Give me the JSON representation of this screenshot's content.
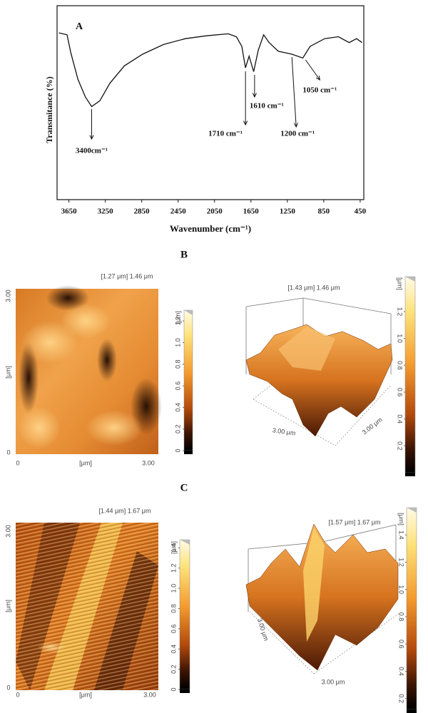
{
  "chart_data": {
    "type": "line",
    "panel_label": "A",
    "xlabel": "Wavenumber (cm⁻¹)",
    "ylabel": "Transmitance (%)",
    "xlim": [
      3780,
      410
    ],
    "xticks": [
      3650,
      3250,
      2850,
      2450,
      2050,
      1650,
      1250,
      850,
      450
    ],
    "ylim": [
      0,
      100
    ],
    "color": "#111111",
    "x": [
      3760,
      3670,
      3630,
      3550,
      3470,
      3400,
      3310,
      3200,
      3040,
      2840,
      2610,
      2370,
      2140,
      1900,
      1810,
      1750,
      1710,
      1670,
      1620,
      1570,
      1510,
      1450,
      1350,
      1200,
      1080,
      1000,
      840,
      690,
      570,
      490,
      430
    ],
    "values": [
      86,
      85,
      76,
      62,
      53,
      48,
      51,
      60,
      69,
      75,
      80,
      83,
      84.5,
      85.5,
      84,
      79,
      68,
      74,
      66,
      77,
      85,
      81,
      76.5,
      75,
      73,
      79,
      83,
      84,
      81,
      83,
      81
    ],
    "annotations": [
      {
        "text": "3400cm⁻¹",
        "x": 3400
      },
      {
        "text": "1710 cm⁻¹",
        "x": 1710
      },
      {
        "text": "1610 cm⁻¹",
        "x": 1610
      },
      {
        "text": "1200 cm⁻¹",
        "x": 1200
      },
      {
        "text": "1050 cm⁻¹",
        "x": 1050
      }
    ]
  },
  "panels": [
    {
      "label": "B",
      "views": [
        {
          "view": "2d",
          "header": "[1.27 μm] 1.46 μm",
          "axis_labels": [
            "3.00",
            "[μm]",
            "0",
            "0",
            "[μm]",
            "3.00"
          ],
          "colorbar": {
            "unit": "[μm]",
            "lim": [
              0,
              1.3
            ],
            "ticks": [
              0,
              0.2,
              0.4,
              0.6,
              0.8,
              {
                "value": 1,
                "label": "1.0"
              },
              1.2
            ]
          }
        },
        {
          "view": "3d",
          "header": "[1.43 μm] 1.46 μm",
          "axis_labels": [
            "3.00 μm",
            "3.00 μm"
          ],
          "colorbar": {
            "unit": "[μm]",
            "lim": [
              0,
              1.46
            ],
            "ticks": [
              0.2,
              0.4,
              0.6,
              0.8,
              {
                "value": 1,
                "label": "1.0"
              },
              1.2
            ]
          }
        }
      ]
    },
    {
      "label": "C",
      "views": [
        {
          "view": "2d",
          "header": "[1.44 μm] 1.67 μm",
          "axis_labels": [
            "3.00",
            "[μm]",
            "0",
            "0",
            "[μm]",
            "3.00"
          ],
          "colorbar": {
            "unit": "[μm]",
            "lim": [
              0,
              1.48
            ],
            "ticks": [
              0,
              0.2,
              0.4,
              0.6,
              0.8,
              {
                "value": 1,
                "label": "1.0"
              },
              1.2,
              1.4
            ]
          }
        },
        {
          "view": "3d",
          "header": "[1.57 μm] 1.67 μm",
          "axis_labels": [
            "3.00 μm",
            "3.00 μm"
          ],
          "colorbar": {
            "unit": "[μm]",
            "lim": [
              0.12,
              1.6
            ],
            "ticks": [
              0.2,
              0.4,
              0.6,
              0.8,
              {
                "value": 1,
                "label": "1.0"
              },
              1.2,
              1.4
            ]
          }
        }
      ]
    }
  ]
}
